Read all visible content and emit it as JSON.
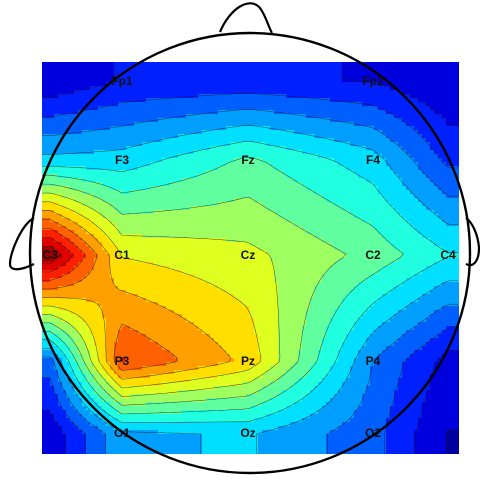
{
  "chart_data": {
    "type": "heatmap",
    "subtype": "eeg-topographic-contour-map",
    "colormap": "jet",
    "contour_lines": true,
    "head_outline": true,
    "electrodes": [
      {
        "label": "Fp1",
        "col": 1,
        "row": 0
      },
      {
        "label": "Fp2",
        "col": 3,
        "row": 0
      },
      {
        "label": "F3",
        "col": 1,
        "row": 1
      },
      {
        "label": "Fz",
        "col": 2,
        "row": 1
      },
      {
        "label": "F4",
        "col": 3,
        "row": 1
      },
      {
        "label": "C3",
        "col": 0,
        "row": 2
      },
      {
        "label": "C1",
        "col": 1,
        "row": 2
      },
      {
        "label": "Cz",
        "col": 2,
        "row": 2
      },
      {
        "label": "C2",
        "col": 3,
        "row": 2
      },
      {
        "label": "C4",
        "col": 4,
        "row": 2
      },
      {
        "label": "P3",
        "col": 1,
        "row": 3
      },
      {
        "label": "Pz",
        "col": 2,
        "row": 3
      },
      {
        "label": "P4",
        "col": 3,
        "row": 3
      },
      {
        "label": "O1",
        "col": 1,
        "row": 4
      },
      {
        "label": "Oz",
        "col": 2,
        "row": 4
      },
      {
        "label": "O2",
        "col": 3,
        "row": 4
      }
    ],
    "grid_values": [
      [
        0.07,
        0.13,
        0.14,
        0.12,
        0.07
      ],
      [
        0.33,
        0.34,
        0.45,
        0.34,
        0.17
      ],
      [
        1.0,
        0.62,
        0.58,
        0.48,
        0.38
      ],
      [
        0.22,
        0.82,
        0.67,
        0.25,
        0.1
      ],
      [
        0.08,
        0.3,
        0.32,
        0.21,
        0.06
      ]
    ],
    "value_range": [
      0,
      1
    ],
    "title": "",
    "xlabel": "",
    "ylabel": ""
  }
}
